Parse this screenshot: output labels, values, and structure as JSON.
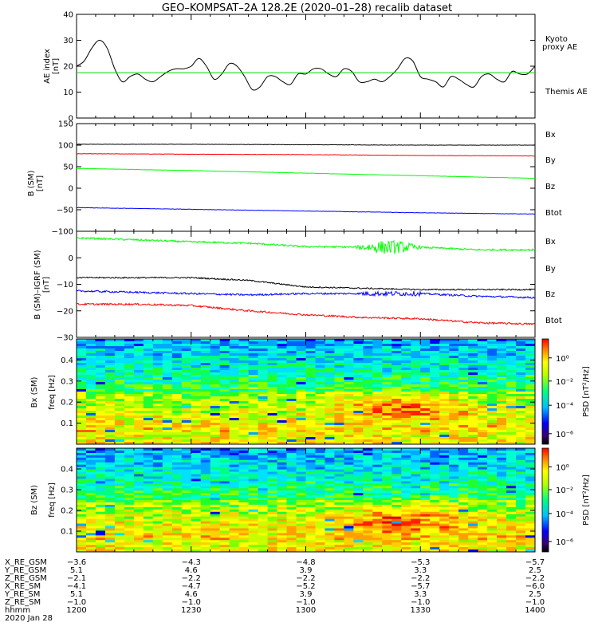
{
  "header": {
    "title": "GEO–KOMPSAT–2A 128.2E (2020–01–28) recalib dataset"
  },
  "colors": {
    "bx": "#0000ff",
    "by": "#00ff00",
    "bz": "#ff0000",
    "btot": "#000000",
    "kyoto": "#00dd00",
    "themis": "#000000",
    "red": "#ff0000"
  },
  "chart_data": [
    {
      "type": "line",
      "panel": "ae",
      "ylabel": "AE index",
      "yunit": "[nT]",
      "ylim": [
        0,
        40
      ],
      "yticks": [
        0,
        10,
        20,
        30,
        40
      ],
      "legend": [
        "Kyoto",
        "proxy AE",
        "Themis AE"
      ],
      "series": [
        {
          "name": "Themis AE",
          "x": [
            1200,
            1202,
            1204,
            1206,
            1208,
            1210,
            1212,
            1214,
            1216,
            1218,
            1220,
            1222,
            1224,
            1226,
            1228,
            1230,
            1232,
            1234,
            1236,
            1238,
            1240,
            1242,
            1244,
            1246,
            1248,
            1250,
            1252,
            1254,
            1256,
            1258,
            1300,
            1302,
            1304,
            1306,
            1308,
            1310,
            1312,
            1314,
            1316,
            1318,
            1320,
            1322,
            1324,
            1326,
            1328,
            1330,
            1332,
            1334,
            1336,
            1338,
            1340,
            1342,
            1344,
            1346,
            1348,
            1350,
            1352,
            1354,
            1356,
            1358,
            1400
          ],
          "y": [
            20,
            22,
            27,
            30,
            27,
            19,
            14,
            16,
            17,
            15,
            14,
            16,
            18,
            19,
            19,
            20,
            23,
            20,
            15,
            17,
            21,
            20,
            16,
            11,
            12,
            16,
            16,
            14,
            13,
            17,
            17,
            19,
            19,
            17,
            16,
            19,
            18,
            14,
            14,
            15,
            14,
            16,
            19,
            23,
            22,
            16,
            15,
            14,
            12,
            16,
            15,
            13,
            12,
            16,
            17,
            15,
            14,
            18,
            17,
            17,
            20
          ]
        },
        {
          "name": "Kyoto proxy AE",
          "x": [
            1200,
            1400
          ],
          "y": [
            17.5,
            17.5
          ]
        }
      ]
    },
    {
      "type": "line",
      "panel": "b_sm",
      "ylabel": "B (SM)",
      "yunit": "[nT]",
      "ylim": [
        -100,
        150
      ],
      "yticks": [
        -100,
        -50,
        0,
        50,
        100,
        150
      ],
      "legend": [
        "Bx",
        "By",
        "Bz",
        "Btot"
      ],
      "series": [
        {
          "name": "Btot",
          "x": [
            1200,
            1230,
            1300,
            1330,
            1400
          ],
          "y": [
            102,
            102,
            101,
            100,
            100
          ]
        },
        {
          "name": "Bz",
          "x": [
            1200,
            1230,
            1300,
            1330,
            1400
          ],
          "y": [
            80,
            79,
            78,
            76,
            75
          ]
        },
        {
          "name": "By",
          "x": [
            1200,
            1230,
            1300,
            1330,
            1400
          ],
          "y": [
            46,
            41,
            35,
            29,
            23
          ]
        },
        {
          "name": "Bx",
          "x": [
            1200,
            1230,
            1300,
            1330,
            1400
          ],
          "y": [
            -45,
            -49,
            -53,
            -57,
            -60
          ]
        }
      ]
    },
    {
      "type": "line",
      "panel": "b_minus_igrf",
      "ylabel": "B (SM)–IGRF (SM)",
      "yunit": "[nT]",
      "ylim": [
        -30,
        10
      ],
      "yticks": [
        -30,
        -20,
        -10,
        0
      ],
      "legend": [
        "Bx",
        "By",
        "Bz",
        "Btot"
      ],
      "series": [
        {
          "name": "By",
          "x": [
            1200,
            1215,
            1230,
            1245,
            1300,
            1315,
            1330,
            1345,
            1400
          ],
          "y": [
            7.5,
            6.8,
            6.0,
            5.5,
            4.2,
            4.0,
            4.0,
            3.0,
            3.0
          ]
        },
        {
          "name": "Btot",
          "x": [
            1200,
            1215,
            1230,
            1245,
            1300,
            1315,
            1330,
            1345,
            1400
          ],
          "y": [
            -7.5,
            -7.5,
            -7.5,
            -8.5,
            -11.0,
            -11.5,
            -12.0,
            -12.0,
            -12.0
          ]
        },
        {
          "name": "Bx",
          "x": [
            1200,
            1215,
            1230,
            1245,
            1300,
            1315,
            1330,
            1345,
            1400
          ],
          "y": [
            -12.5,
            -13.0,
            -13.5,
            -14.0,
            -13.5,
            -13.5,
            -13.5,
            -14.5,
            -15.0
          ]
        },
        {
          "name": "Bz",
          "x": [
            1200,
            1215,
            1230,
            1245,
            1300,
            1315,
            1330,
            1345,
            1400
          ],
          "y": [
            -17.5,
            -17.5,
            -18.0,
            -20.0,
            -21.5,
            -22.5,
            -23.0,
            -24.5,
            -25.0
          ]
        }
      ]
    },
    {
      "type": "heatmap",
      "panel": "bx_spec",
      "ylabel": "Bx (SM)",
      "yunit": "freq [Hz]",
      "ylim": [
        0,
        0.5
      ],
      "yticks": [
        0.1,
        0.2,
        0.3,
        0.4
      ],
      "colorbar_label": "PSD [nT²/Hz]",
      "colorbar_ticks": [
        "10⁰",
        "10⁻²",
        "10⁻⁴",
        "10⁻⁶"
      ]
    },
    {
      "type": "heatmap",
      "panel": "bz_spec",
      "ylabel": "Bz (SM)",
      "yunit": "freq [Hz]",
      "ylim": [
        0,
        0.5
      ],
      "yticks": [
        0.1,
        0.2,
        0.3,
        0.4
      ],
      "colorbar_label": "PSD [nT²/Hz]",
      "colorbar_ticks": [
        "10⁰",
        "10⁻²",
        "10⁻⁴",
        "10⁻⁶"
      ]
    }
  ],
  "ephemeris": {
    "row_labels": [
      "X_RE_GSM",
      "Y_RE_GSM",
      "Z_RE_GSM",
      "X_RE_SM",
      "Y_RE_SM",
      "Z_RE_SM",
      "hhmm",
      "2020 Jan 28"
    ],
    "columns": [
      [
        "−3.6",
        "5.1",
        "−2.1",
        "−4.1",
        "5.1",
        "−1.0",
        "1200"
      ],
      [
        "−4.3",
        "4.6",
        "−2.2",
        "−4.7",
        "4.6",
        "−1.0",
        "1230"
      ],
      [
        "−4.8",
        "3.9",
        "−2.2",
        "−5.2",
        "3.9",
        "−1.0",
        "1300"
      ],
      [
        "−5.3",
        "3.3",
        "−2.2",
        "−5.7",
        "3.3",
        "−1.0",
        "1330"
      ],
      [
        "−5.7",
        "2.5",
        "−2.2",
        "−6.0",
        "2.5",
        "−1.0",
        "1400"
      ]
    ]
  }
}
